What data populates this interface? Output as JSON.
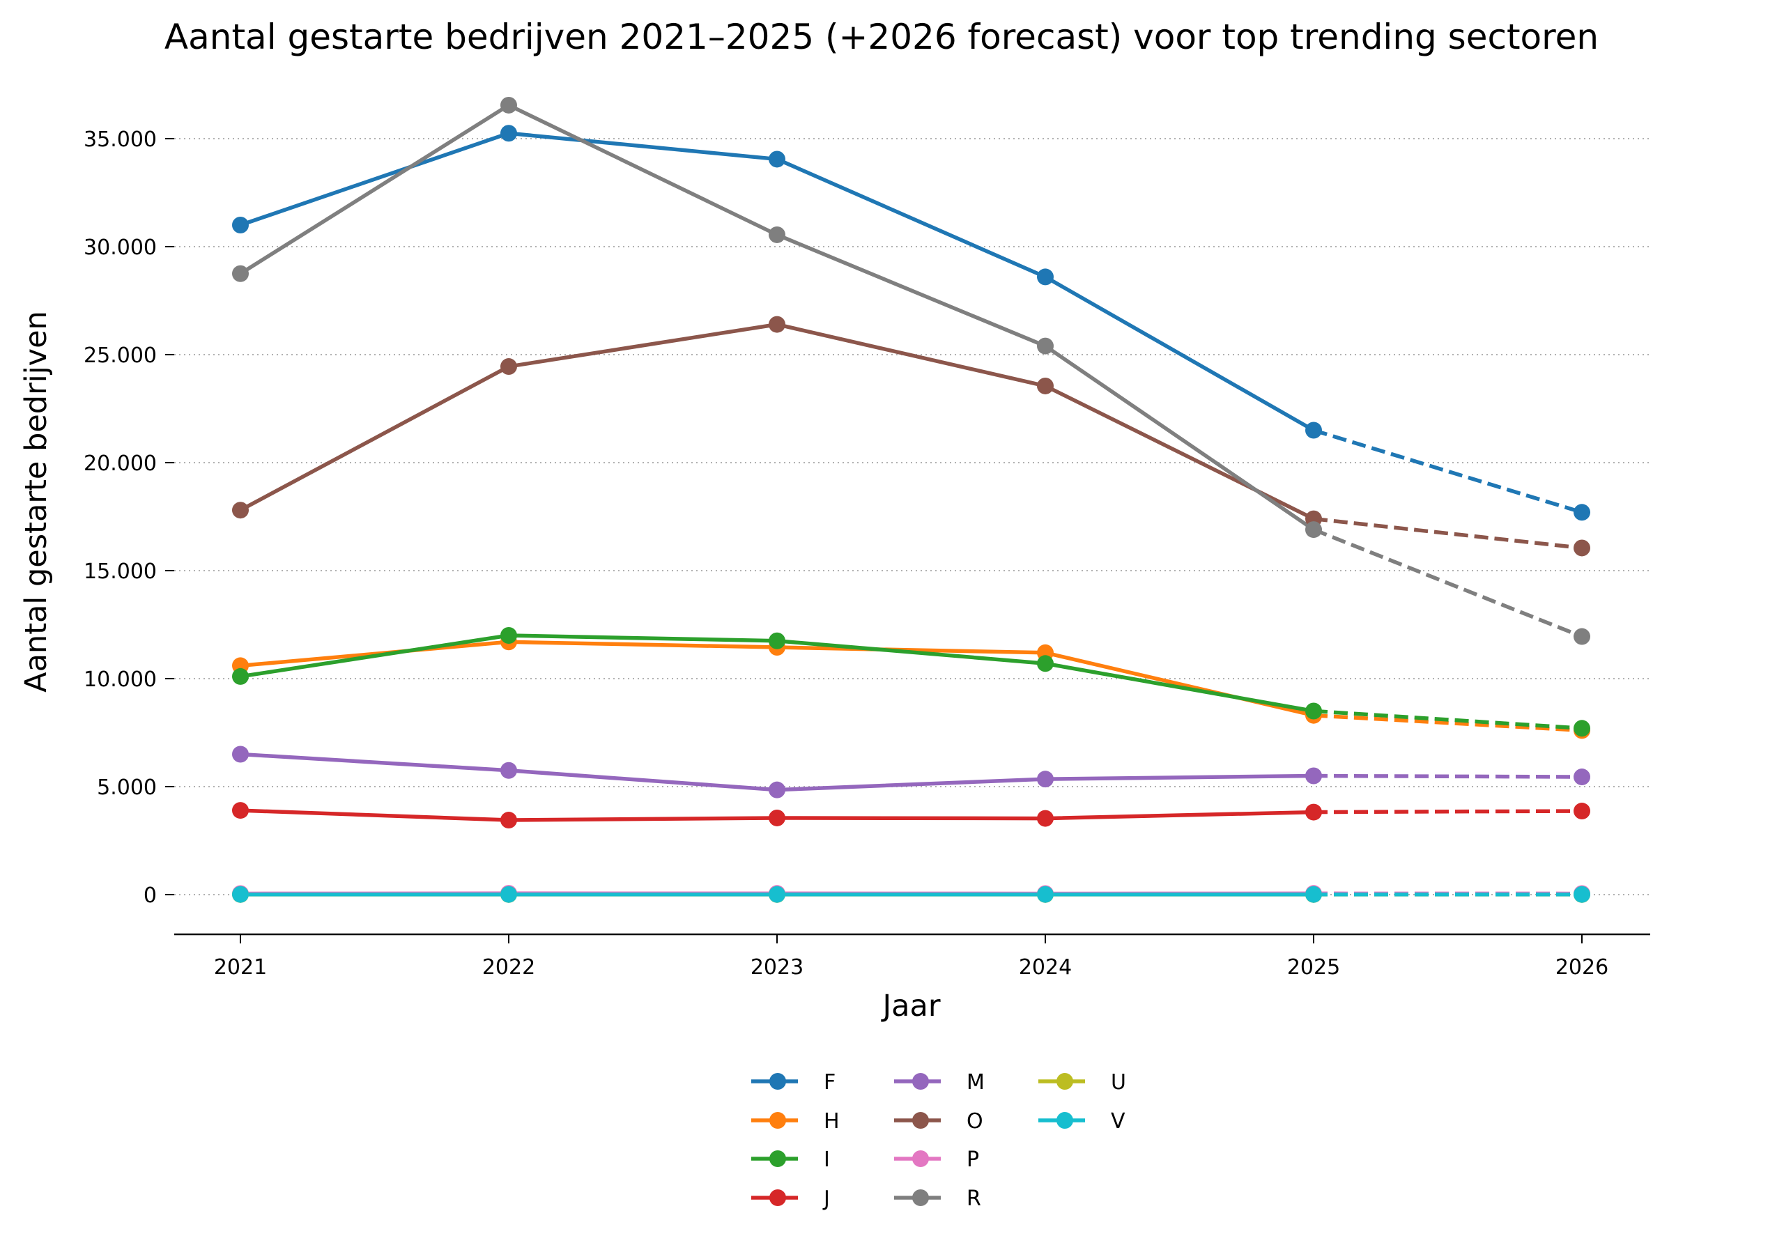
{
  "chart_data": {
    "type": "line",
    "title": "Aantal gestarte bedrijven 2021–2025 (+2026 forecast) voor top trending sectoren",
    "xlabel": "Jaar",
    "ylabel": "Aantal gestarte bedrijven",
    "x": [
      2021,
      2022,
      2023,
      2024,
      2025,
      2026
    ],
    "x_tick_labels": [
      "2021",
      "2022",
      "2023",
      "2024",
      "2025",
      "2026"
    ],
    "forecast_from": 2025,
    "forecast_style": "dashed",
    "ylim": [
      -1800,
      37000
    ],
    "y_ticks": [
      0,
      5000,
      10000,
      15000,
      20000,
      25000,
      30000,
      35000
    ],
    "y_tick_labels": [
      "0",
      "5.000",
      "10.000",
      "15.000",
      "20.000",
      "25.000",
      "30.000",
      "35.000"
    ],
    "grid": "horizontal-dotted",
    "legend_position": "bottom-center",
    "legend_columns": 3,
    "series": [
      {
        "name": "F",
        "color": "#1f77b4",
        "values": [
          31000,
          35250,
          34050,
          28600,
          21500,
          17700
        ]
      },
      {
        "name": "H",
        "color": "#ff7f0e",
        "values": [
          10600,
          11700,
          11450,
          11200,
          8300,
          7600
        ]
      },
      {
        "name": "I",
        "color": "#2ca02c",
        "values": [
          10100,
          12000,
          11750,
          10700,
          8500,
          7700
        ]
      },
      {
        "name": "J",
        "color": "#d62728",
        "values": [
          3900,
          3450,
          3550,
          3530,
          3820,
          3870
        ]
      },
      {
        "name": "M",
        "color": "#9467bd",
        "values": [
          6500,
          5750,
          4850,
          5350,
          5500,
          5450
        ]
      },
      {
        "name": "O",
        "color": "#8c564b",
        "values": [
          17800,
          24450,
          26400,
          23550,
          17400,
          16050
        ]
      },
      {
        "name": "P",
        "color": "#e377c2",
        "values": [
          50,
          60,
          55,
          50,
          55,
          50
        ]
      },
      {
        "name": "R",
        "color": "#7f7f7f",
        "values": [
          28750,
          36550,
          30550,
          25400,
          16900,
          11950
        ]
      },
      {
        "name": "U",
        "color": "#bcbd22",
        "values": [
          5,
          5,
          5,
          5,
          5,
          5
        ]
      },
      {
        "name": "V",
        "color": "#17becf",
        "values": [
          10,
          10,
          10,
          10,
          10,
          10
        ]
      }
    ]
  }
}
